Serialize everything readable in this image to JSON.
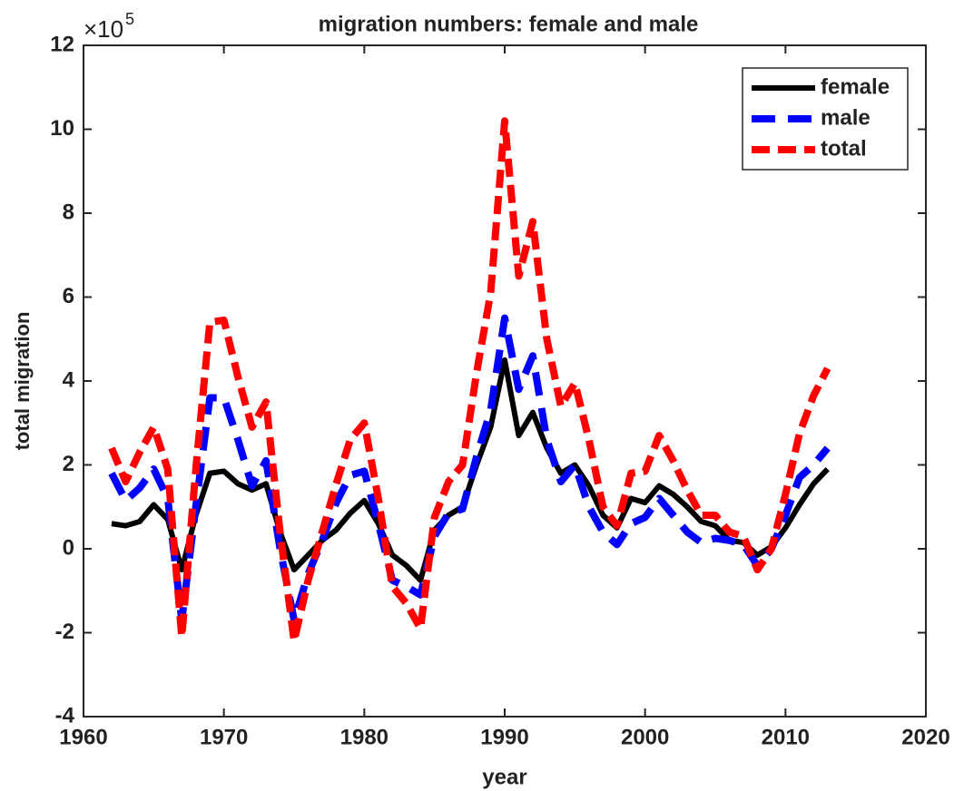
{
  "chart_data": {
    "type": "line",
    "title": "migration numbers: female and male",
    "xlabel": "year",
    "ylabel": "total migration",
    "axis_multiplier": "×10",
    "axis_exponent": "5",
    "x": [
      1962,
      1963,
      1964,
      1965,
      1966,
      1967,
      1968,
      1969,
      1970,
      1971,
      1972,
      1973,
      1974,
      1975,
      1976,
      1977,
      1978,
      1979,
      1980,
      1981,
      1982,
      1983,
      1984,
      1985,
      1986,
      1987,
      1988,
      1989,
      1990,
      1991,
      1992,
      1993,
      1994,
      1995,
      1996,
      1997,
      1998,
      1999,
      2000,
      2001,
      2002,
      2003,
      2004,
      2005,
      2006,
      2007,
      2008,
      2009,
      2010,
      2011,
      2012,
      2013
    ],
    "series": [
      {
        "name": "female",
        "color": "#000000",
        "dash": "none",
        "width": 6,
        "values": [
          0.6,
          0.55,
          0.65,
          1.05,
          0.7,
          -0.5,
          0.8,
          1.8,
          1.85,
          1.55,
          1.4,
          1.55,
          0.4,
          -0.5,
          -0.15,
          0.2,
          0.45,
          0.85,
          1.15,
          0.6,
          -0.15,
          -0.4,
          -0.75,
          0.45,
          0.8,
          1.0,
          2.0,
          2.9,
          4.5,
          2.7,
          3.25,
          2.4,
          1.8,
          2.0,
          1.5,
          0.8,
          0.5,
          1.2,
          1.1,
          1.5,
          1.3,
          1.0,
          0.65,
          0.55,
          0.2,
          0.15,
          -0.15,
          0.05,
          0.5,
          1.05,
          1.55,
          1.9
        ]
      },
      {
        "name": "male",
        "color": "#0000ff",
        "dash": "26 14",
        "width": 8,
        "values": [
          1.8,
          1.15,
          1.45,
          1.9,
          1.2,
          -1.7,
          1.0,
          3.6,
          3.6,
          2.6,
          1.5,
          2.1,
          0.0,
          -1.7,
          -0.6,
          0.2,
          1.1,
          1.75,
          1.85,
          0.6,
          -0.75,
          -0.9,
          -1.1,
          0.3,
          0.85,
          0.95,
          2.2,
          3.3,
          5.5,
          3.8,
          4.6,
          2.6,
          1.6,
          2.0,
          1.0,
          0.4,
          0.1,
          0.6,
          0.75,
          1.2,
          0.8,
          0.4,
          0.15,
          0.25,
          0.2,
          0.1,
          -0.4,
          0.0,
          0.8,
          1.7,
          2.0,
          2.4
        ]
      },
      {
        "name": "total",
        "color": "#ff0000",
        "dash": "20 9",
        "width": 8,
        "values": [
          2.4,
          1.6,
          2.3,
          2.9,
          1.9,
          -2.1,
          1.9,
          5.4,
          5.45,
          4.1,
          2.9,
          3.5,
          0.4,
          -2.2,
          -0.75,
          0.4,
          1.55,
          2.6,
          3.0,
          1.2,
          -0.9,
          -1.3,
          -1.9,
          0.75,
          1.6,
          2.0,
          4.2,
          6.1,
          10.2,
          6.5,
          7.8,
          5.0,
          3.4,
          3.95,
          2.6,
          1.0,
          0.55,
          1.8,
          1.85,
          2.7,
          2.1,
          1.4,
          0.8,
          0.8,
          0.4,
          0.3,
          -0.5,
          0.0,
          1.3,
          2.75,
          3.65,
          4.3
        ]
      }
    ],
    "xlim": [
      1960,
      2020
    ],
    "xticks": [
      1960,
      1970,
      1980,
      1990,
      2000,
      2010,
      2020
    ],
    "ylim": [
      -4,
      12
    ],
    "yticks": [
      -4,
      -2,
      0,
      2,
      4,
      6,
      8,
      10,
      12
    ],
    "legend": "upper right"
  }
}
